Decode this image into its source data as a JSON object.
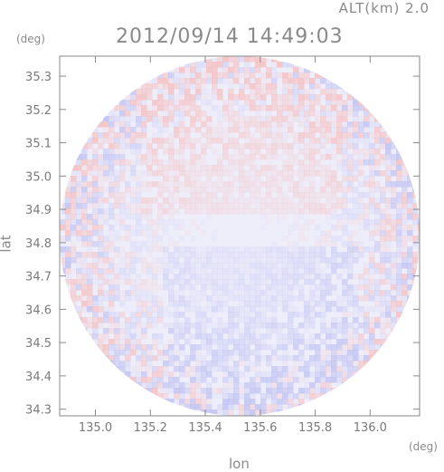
{
  "header": {
    "altitude_label": "ALT(km) 2.0",
    "timestamp": "2012/09/14 14:49:03"
  },
  "chart_data": {
    "type": "heatmap",
    "title": "2012/09/14 14:49:03",
    "subtitle": "ALT(km) 2.0",
    "xlabel": "lon",
    "ylabel": "lat",
    "x_unit": "(deg)",
    "y_unit": "(deg)",
    "xlim": [
      134.87,
      136.18
    ],
    "ylim": [
      34.28,
      35.36
    ],
    "x_ticks": [
      135.0,
      135.2,
      135.4,
      135.6,
      135.8,
      136.0
    ],
    "x_tick_labels": [
      "135.0",
      "135.2",
      "135.4",
      "135.6",
      "135.8",
      "136.0"
    ],
    "y_ticks": [
      34.3,
      34.4,
      34.5,
      34.6,
      34.7,
      34.8,
      34.9,
      35.0,
      35.1,
      35.2,
      35.3
    ],
    "y_tick_labels": [
      "34.3",
      "34.4",
      "34.5",
      "34.6",
      "34.7",
      "34.8",
      "34.9",
      "35.0",
      "35.1",
      "35.2",
      "35.3"
    ],
    "grid": false,
    "radar_domain": {
      "center_lon": 135.525,
      "center_lat": 34.82,
      "radius_lon": 0.655,
      "radius_lat": 0.54
    },
    "colors": {
      "positive": "#f4c4c4",
      "negative": "#c4c6f2",
      "neutral": "#eeeefb",
      "axis": "#8a8a8a"
    }
  }
}
